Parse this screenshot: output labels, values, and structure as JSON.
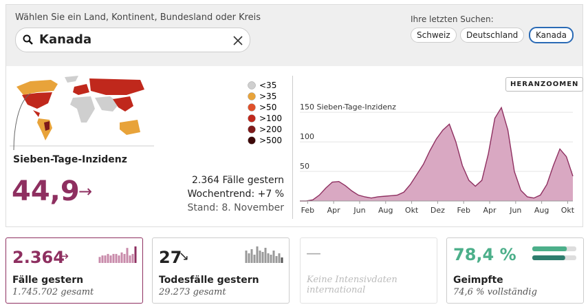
{
  "search": {
    "label": "Wählen Sie ein Land, Kontinent, Bundesland oder Kreis",
    "query": "Kanada"
  },
  "recent": {
    "label": "Ihre letzten Suchen:",
    "items": [
      "Schweiz",
      "Deutschland",
      "Kanada"
    ]
  },
  "map": {
    "legend": [
      "<35",
      ">35",
      ">50",
      ">100",
      ">200",
      ">500"
    ],
    "colors": [
      "#cfcfcf",
      "#e8a33a",
      "#e0502a",
      "#c0281c",
      "#7e1a1a",
      "#3d0808"
    ]
  },
  "summary": {
    "title": "Sieben-Tage-Inzidenz",
    "value": "44,9",
    "arrow": "→",
    "lines": [
      "2.364 Fälle gestern",
      "Wochentrend: +7 %",
      "Stand: 8. November"
    ]
  },
  "zoom": "HERANZOOMEN",
  "chart_data": {
    "type": "area",
    "color": "#8e2f60",
    "fill": "#d9a8c2",
    "x": [
      0,
      0.5,
      1,
      1.5,
      2,
      2.5,
      3,
      3.5,
      4,
      4.5,
      5,
      5.5,
      6,
      6.5,
      7,
      7.5,
      8,
      8.5,
      9,
      9.5,
      10,
      10.5,
      11,
      11.5,
      12,
      12.5,
      13,
      13.5,
      14,
      14.5,
      15,
      15.5,
      16,
      16.5,
      17,
      17.5,
      18,
      18.5,
      19,
      19.5,
      20,
      20.5,
      21
    ],
    "values": [
      0,
      0,
      2,
      10,
      22,
      32,
      33,
      26,
      17,
      10,
      7,
      5,
      7,
      8,
      9,
      10,
      15,
      28,
      45,
      62,
      85,
      105,
      120,
      130,
      100,
      60,
      35,
      25,
      35,
      80,
      140,
      158,
      120,
      50,
      18,
      7,
      5,
      10,
      28,
      60,
      88,
      75,
      42
    ],
    "xlim": [
      0,
      21
    ],
    "ylim": [
      0,
      170
    ],
    "xticks": [
      {
        "value": 0.6,
        "label": "Feb"
      },
      {
        "value": 2.6,
        "label": "Apr"
      },
      {
        "value": 4.6,
        "label": "Jun"
      },
      {
        "value": 6.6,
        "label": "Aug"
      },
      {
        "value": 8.6,
        "label": "Okt"
      },
      {
        "value": 10.6,
        "label": "Dez"
      },
      {
        "value": 12.6,
        "label": "Feb"
      },
      {
        "value": 14.6,
        "label": "Apr"
      },
      {
        "value": 16.6,
        "label": "Jun"
      },
      {
        "value": 18.6,
        "label": "Aug"
      },
      {
        "value": 20.6,
        "label": "Okt"
      }
    ],
    "yticks": [
      50,
      100,
      {
        "value": 150,
        "label": "150 Sieben-Tage-Inzidenz"
      }
    ],
    "grid": true
  },
  "cards": [
    {
      "value": "2.364",
      "arrow": "→",
      "title": "Fälle gestern",
      "sub": "1.745.702 gesamt",
      "spark": [
        4,
        5,
        5,
        6,
        5,
        6,
        6,
        5,
        7,
        6,
        10,
        5,
        6,
        11
      ]
    },
    {
      "value": "27",
      "arrow": "↘",
      "title": "Todesfälle gestern",
      "sub": "29.273 gesamt",
      "spark": [
        9,
        7,
        10,
        6,
        12,
        9,
        8,
        11,
        7,
        6,
        9,
        5,
        7,
        4
      ]
    },
    {
      "value": "—",
      "title": "Keine Intensivdaten international"
    },
    {
      "value_labels": [
        "78,4 %",
        "74,6 %"
      ],
      "values": [
        78.4,
        74.6
      ],
      "title": "Geimpfte",
      "sub": "vollständig"
    }
  ]
}
